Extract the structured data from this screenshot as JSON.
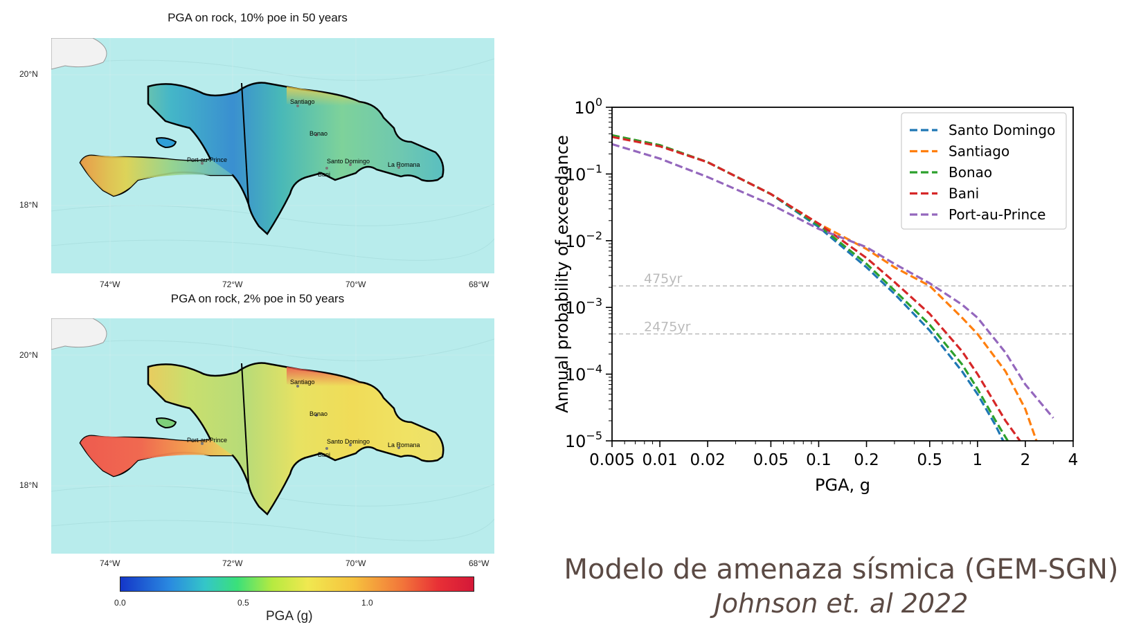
{
  "maps": {
    "top_title": "PGA on rock, 10% poe in 50 years",
    "bottom_title": "PGA on rock, 2% poe in 50 years",
    "lat_labels": [
      "20°N",
      "18°N"
    ],
    "lon_labels": [
      "74°W",
      "72°W",
      "70°W",
      "68°W"
    ],
    "cities": [
      "Santiago",
      "Bonao",
      "Port-au-Prince",
      "Santo Domingo",
      "Bani",
      "La Romana"
    ],
    "colorbar": {
      "ticks": [
        "0.0",
        "0.5",
        "1.0"
      ],
      "label": "PGA (g)"
    }
  },
  "chart_data": {
    "type": "line",
    "xlabel": "PGA, g",
    "ylabel": "Annual probability of exceedance",
    "x_scale": "log",
    "y_scale": "log",
    "xlim": [
      0.005,
      4
    ],
    "ylim": [
      1e-05,
      1
    ],
    "x_ticks": [
      0.005,
      0.01,
      0.02,
      0.05,
      0.1,
      0.2,
      0.5,
      1,
      2,
      4
    ],
    "x_tick_labels": [
      "0.005",
      "0.01",
      "0.02",
      "0.05",
      "0.1",
      "0.2",
      "0.5",
      "1",
      "2",
      "4"
    ],
    "y_ticks": [
      1,
      0.1,
      0.01,
      0.001,
      0.0001,
      1e-05
    ],
    "y_tick_labels": [
      {
        "base": "10",
        "exp": "0"
      },
      {
        "base": "10",
        "exp": "−1"
      },
      {
        "base": "10",
        "exp": "−2"
      },
      {
        "base": "10",
        "exp": "−3"
      },
      {
        "base": "10",
        "exp": "−4"
      },
      {
        "base": "10",
        "exp": "−5"
      }
    ],
    "reference_lines": [
      {
        "label": "475yr",
        "y": 0.0021
      },
      {
        "label": "2475yr",
        "y": 0.0004
      }
    ],
    "legend_position": "top-right",
    "line_style": "dashed",
    "series": [
      {
        "name": "Santo Domingo",
        "color": "#1f77b4",
        "x": [
          0.005,
          0.01,
          0.02,
          0.05,
          0.1,
          0.2,
          0.3,
          0.5,
          0.8,
          1.0,
          1.3,
          1.45
        ],
        "y": [
          0.38,
          0.27,
          0.15,
          0.05,
          0.016,
          0.004,
          0.0016,
          0.00045,
          0.00011,
          5e-05,
          1.7e-05,
          1e-05
        ]
      },
      {
        "name": "Santiago",
        "color": "#ff7f0e",
        "x": [
          0.005,
          0.01,
          0.02,
          0.05,
          0.1,
          0.2,
          0.3,
          0.5,
          0.8,
          1.0,
          1.5,
          2.0,
          2.35
        ],
        "y": [
          0.38,
          0.27,
          0.15,
          0.05,
          0.018,
          0.0075,
          0.004,
          0.0021,
          0.0007,
          0.0004,
          0.00011,
          3e-05,
          1e-05
        ]
      },
      {
        "name": "Bonao",
        "color": "#2ca02c",
        "x": [
          0.005,
          0.01,
          0.02,
          0.05,
          0.1,
          0.2,
          0.3,
          0.5,
          0.8,
          1.0,
          1.3,
          1.55
        ],
        "y": [
          0.38,
          0.27,
          0.15,
          0.05,
          0.017,
          0.0045,
          0.0018,
          0.00055,
          0.00014,
          6e-05,
          2e-05,
          1e-05
        ]
      },
      {
        "name": "Bani",
        "color": "#d62728",
        "x": [
          0.005,
          0.01,
          0.02,
          0.05,
          0.1,
          0.2,
          0.3,
          0.5,
          0.8,
          1.0,
          1.5,
          1.85
        ],
        "y": [
          0.36,
          0.26,
          0.15,
          0.05,
          0.018,
          0.0055,
          0.0024,
          0.0008,
          0.00022,
          0.0001,
          2e-05,
          1e-05
        ]
      },
      {
        "name": "Port-au-Prince",
        "color": "#9467bd",
        "x": [
          0.005,
          0.01,
          0.02,
          0.05,
          0.1,
          0.2,
          0.3,
          0.5,
          0.8,
          1.0,
          1.5,
          2.0,
          3.0
        ],
        "y": [
          0.28,
          0.17,
          0.09,
          0.035,
          0.015,
          0.008,
          0.0045,
          0.0023,
          0.0011,
          0.0007,
          0.00021,
          7e-05,
          2.2e-05
        ]
      }
    ]
  },
  "caption": {
    "line1": "Modelo de amenaza sísmica (GEM-SGN)",
    "line2": "Johnson et. al 2022"
  }
}
